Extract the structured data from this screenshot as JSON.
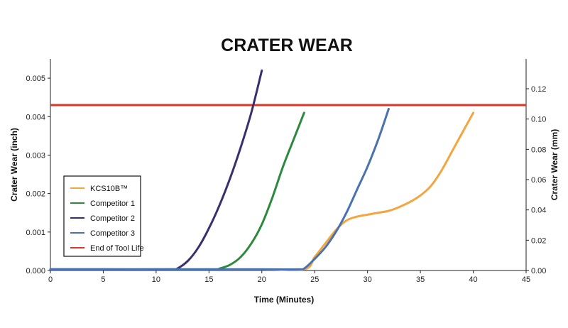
{
  "chart_data": {
    "type": "line",
    "title": "CRATER WEAR",
    "xlabel": "Time (Minutes)",
    "ylabel": "Crater Wear (inch)",
    "y2label": "Crater Wear (mm)",
    "xlim": [
      0,
      45
    ],
    "ylim": [
      0,
      0.0055
    ],
    "y2lim": [
      0,
      0.1397
    ],
    "xticks": [
      "0",
      "5",
      "10",
      "15",
      "20",
      "25",
      "30",
      "35",
      "40",
      "45"
    ],
    "yticks": [
      "0.000",
      "0.001",
      "0.002",
      "0.003",
      "0.004",
      "0.005"
    ],
    "y2ticks": [
      "0.00",
      "0.02",
      "0.04",
      "0.06",
      "0.08",
      "0.10",
      "0.12"
    ],
    "grid": false,
    "legend_position": "left",
    "threshold": {
      "name": "End of Tool Life",
      "value": 0.0043,
      "color": "#e0352b"
    },
    "series": [
      {
        "name": "KCS10B™",
        "color": "#f2a640",
        "x": [
          0,
          10,
          20,
          24,
          25,
          26,
          27,
          28,
          29,
          30,
          31,
          32,
          33,
          34,
          35,
          36,
          37,
          38,
          39,
          40
        ],
        "y": [
          3e-05,
          3e-05,
          3e-05,
          3e-05,
          0.00035,
          0.0007,
          0.00105,
          0.0013,
          0.0014,
          0.00145,
          0.0015,
          0.00155,
          0.00165,
          0.00178,
          0.00195,
          0.0022,
          0.0026,
          0.0031,
          0.0036,
          0.0041
        ]
      },
      {
        "name": "Competitor 1",
        "color": "#2b8a3e",
        "x": [
          0,
          10,
          15.5,
          16,
          17,
          18,
          19,
          20,
          21,
          22,
          23,
          24
        ],
        "y": [
          3e-05,
          3e-05,
          3e-05,
          5e-05,
          0.00015,
          0.00035,
          0.0007,
          0.0012,
          0.0019,
          0.0027,
          0.0034,
          0.0041
        ]
      },
      {
        "name": "Competitor 2",
        "color": "#3a2f6e",
        "x": [
          0,
          5,
          11.5,
          12,
          13,
          14,
          15,
          16,
          17,
          18,
          19,
          20
        ],
        "y": [
          3e-05,
          3e-05,
          3e-05,
          5e-05,
          0.00025,
          0.0006,
          0.0011,
          0.0017,
          0.0024,
          0.0032,
          0.0041,
          0.0052
        ]
      },
      {
        "name": "Competitor 3",
        "color": "#4a72b0",
        "x": [
          0,
          10,
          20,
          23.5,
          24,
          25,
          26,
          27,
          28,
          29,
          30,
          31,
          32
        ],
        "y": [
          3e-05,
          3e-05,
          3e-05,
          3e-05,
          5e-05,
          0.0003,
          0.0006,
          0.001,
          0.0015,
          0.0021,
          0.0027,
          0.0034,
          0.0042
        ]
      }
    ]
  }
}
